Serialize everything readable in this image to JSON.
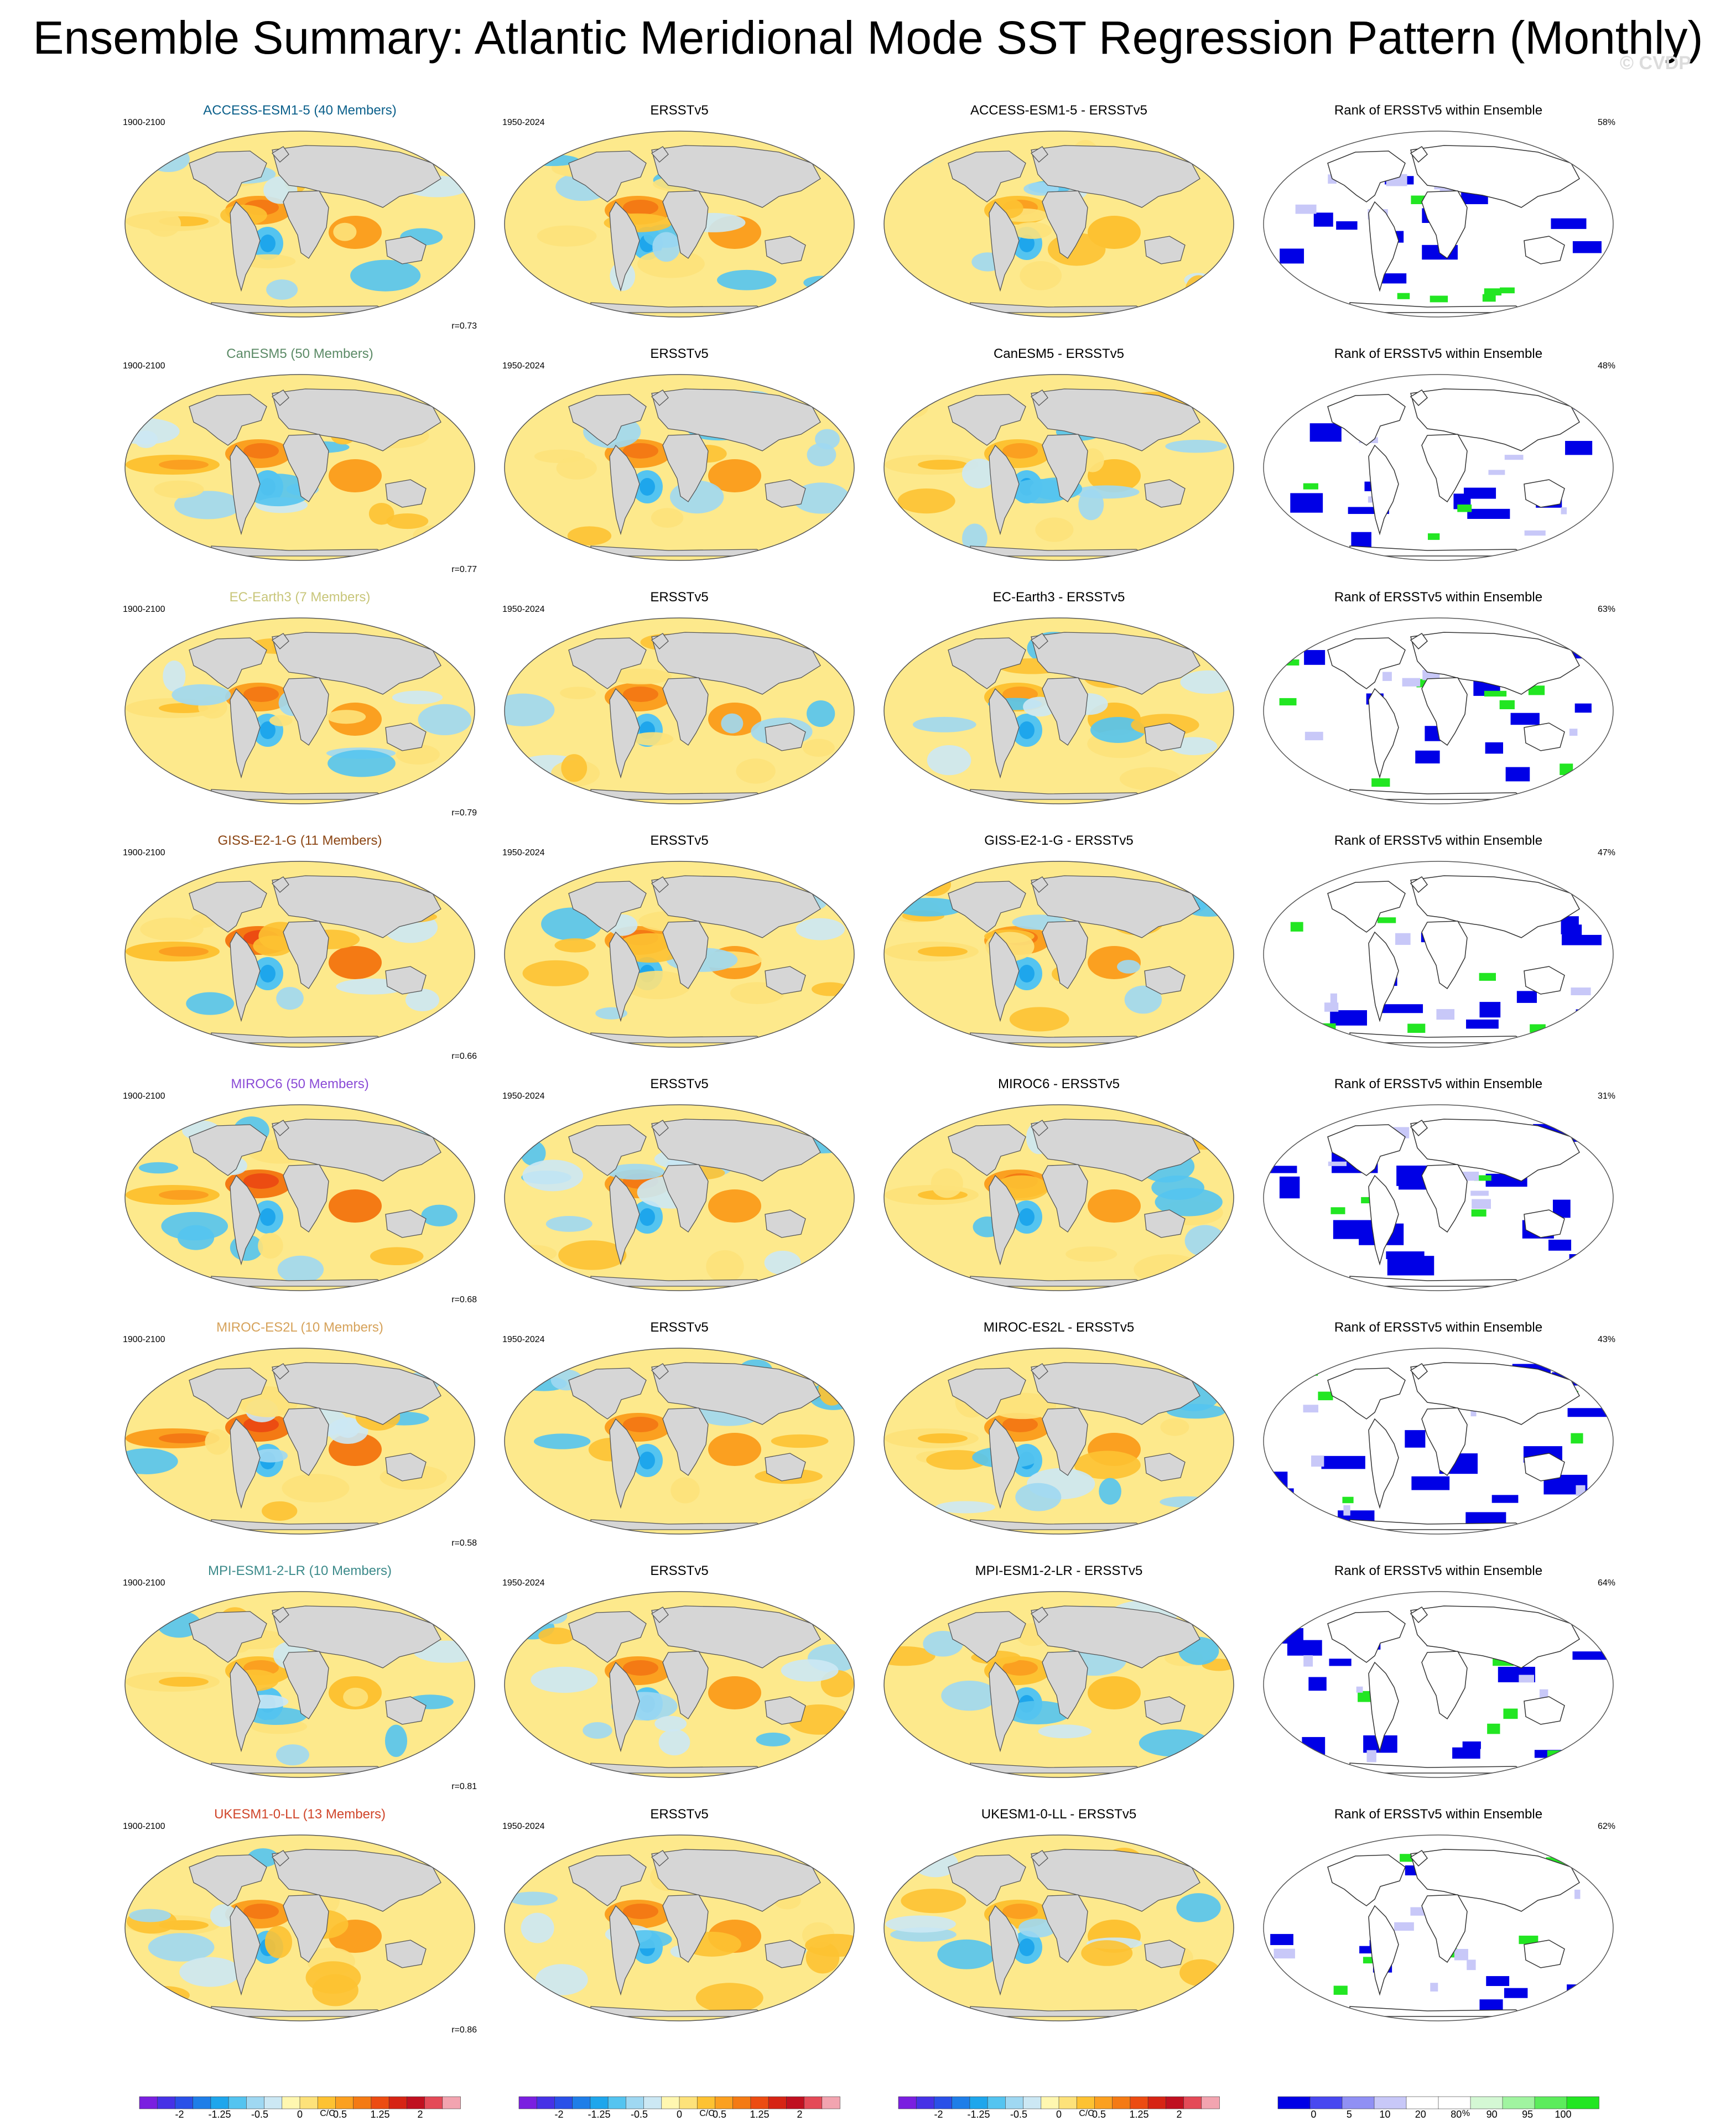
{
  "title": "Ensemble Summary: Atlantic Meridional Mode SST Regression Pattern (Monthly)",
  "watermark": "© CVDP",
  "colors": {
    "ocean_warm": "#fde98c",
    "land": "#d6d6d6",
    "coast": "#555555",
    "blue_rank": "#0000e6",
    "green_rank": "#22e622"
  },
  "rank_title": "Rank of ERSSTv5 within Ensemble",
  "obs_name": "ERSSTv5",
  "obs_years": "1950-2024",
  "model_years": "1900-2100",
  "rows": [
    {
      "model": "ACCESS-ESM1-5 (40 Members)",
      "model_color": "#0a5f8a",
      "diff": "ACCESS-ESM1-5 - ERSSTv5",
      "corr": "r=0.73",
      "pct": "58%",
      "strength": 0.8,
      "rank_blue": 0.45,
      "rank_green": 0.25
    },
    {
      "model": "CanESM5 (50 Members)",
      "model_color": "#5b8a66",
      "diff": "CanESM5 - ERSSTv5",
      "corr": "r=0.77",
      "pct": "48%",
      "strength": 1.2,
      "rank_blue": 0.6,
      "rank_green": 0.15
    },
    {
      "model": "EC-Earth3 (7 Members)",
      "model_color": "#c8c67a",
      "diff": "EC-Earth3 - ERSSTv5",
      "corr": "r=0.79",
      "pct": "63%",
      "strength": 0.9,
      "rank_blue": 0.4,
      "rank_green": 0.4
    },
    {
      "model": "GISS-E2-1-G (11 Members)",
      "model_color": "#8b4513",
      "diff": "GISS-E2-1-G - ERSSTv5",
      "corr": "r=0.66",
      "pct": "47%",
      "strength": 1.3,
      "rank_blue": 0.6,
      "rank_green": 0.3
    },
    {
      "model": "MIROC6 (50 Members)",
      "model_color": "#8a4bd6",
      "diff": "MIROC6 - ERSSTv5",
      "corr": "r=0.68",
      "pct": "31%",
      "strength": 1.4,
      "rank_blue": 0.75,
      "rank_green": 0.2
    },
    {
      "model": "MIROC-ES2L (10 Members)",
      "model_color": "#d6a25a",
      "diff": "MIROC-ES2L - ERSSTv5",
      "corr": "r=0.58",
      "pct": "43%",
      "strength": 1.6,
      "rank_blue": 0.65,
      "rank_green": 0.3
    },
    {
      "model": "MPI-ESM1-2-LR (10 Members)",
      "model_color": "#3c8a8a",
      "diff": "MPI-ESM1-2-LR - ERSSTv5",
      "corr": "r=0.81",
      "pct": "64%",
      "strength": 0.7,
      "rank_blue": 0.5,
      "rank_green": 0.35
    },
    {
      "model": "UKESM1-0-LL (13 Members)",
      "model_color": "#d0452a",
      "diff": "UKESM1-0-LL - ERSSTv5",
      "corr": "r=0.86",
      "pct": "62%",
      "strength": 0.75,
      "rank_blue": 0.3,
      "rank_green": 0.25
    }
  ],
  "colorbars": [
    {
      "ticks": [
        "-2",
        "-1.25",
        "-0.5",
        "0",
        "0.5",
        "1.25",
        "2"
      ],
      "unit": "C/C",
      "colors": [
        "#7a1fe0",
        "#4632e6",
        "#2a50e8",
        "#1e7ee8",
        "#1ea6ec",
        "#54c4f0",
        "#9fd8f2",
        "#cce8f4",
        "#fff7b0",
        "#fde27a",
        "#fdc232",
        "#fba020",
        "#f47a14",
        "#ec4c12",
        "#d62414",
        "#c01020",
        "#e44a58",
        "#f2a4b0"
      ]
    },
    {
      "ticks": [
        "-2",
        "-1.25",
        "-0.5",
        "0",
        "0.5",
        "1.25",
        "2"
      ],
      "unit": "C/C",
      "colors": [
        "#7a1fe0",
        "#4632e6",
        "#2a50e8",
        "#1e7ee8",
        "#1ea6ec",
        "#54c4f0",
        "#9fd8f2",
        "#cce8f4",
        "#fff7b0",
        "#fde27a",
        "#fdc232",
        "#fba020",
        "#f47a14",
        "#ec4c12",
        "#d62414",
        "#c01020",
        "#e44a58",
        "#f2a4b0"
      ]
    },
    {
      "ticks": [
        "-2",
        "-1.25",
        "-0.5",
        "0",
        "0.5",
        "1.25",
        "2"
      ],
      "unit": "C/C",
      "colors": [
        "#7a1fe0",
        "#4632e6",
        "#2a50e8",
        "#1e7ee8",
        "#1ea6ec",
        "#54c4f0",
        "#9fd8f2",
        "#cce8f4",
        "#fff7b0",
        "#fde27a",
        "#fdc232",
        "#fba020",
        "#f47a14",
        "#ec4c12",
        "#d62414",
        "#c01020",
        "#e44a58",
        "#f2a4b0"
      ]
    },
    {
      "ticks": [
        "0",
        "5",
        "10",
        "20",
        "80",
        "90",
        "95",
        "100"
      ],
      "unit": "%",
      "colors": [
        "#0000e6",
        "#4848f0",
        "#9090f4",
        "#c8c8f8",
        "#ffffff",
        "#ffffff",
        "#d4f8d4",
        "#a0f4a0",
        "#5cec5c",
        "#22e622"
      ]
    }
  ]
}
